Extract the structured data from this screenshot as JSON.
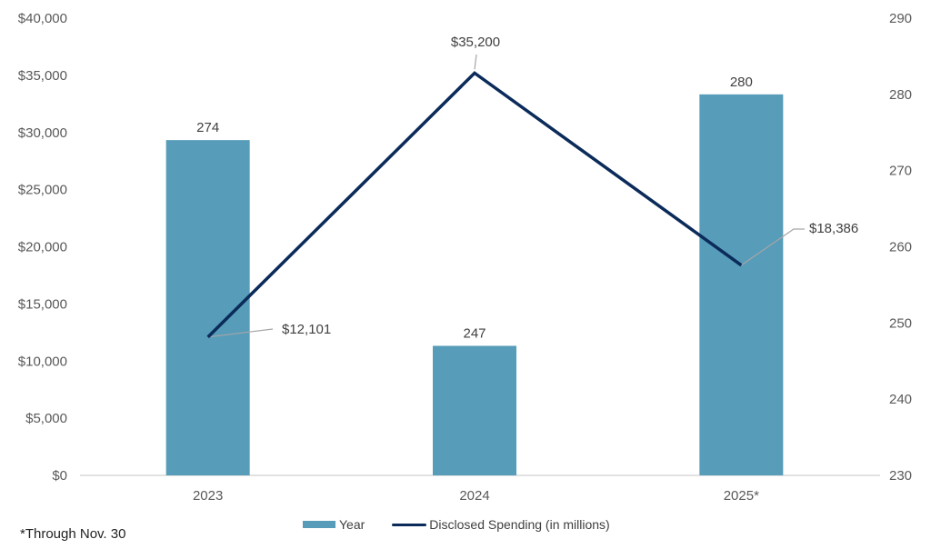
{
  "chart_data": {
    "type": "bar+line",
    "title": "",
    "categories": [
      "2023",
      "2024",
      "2025*"
    ],
    "series": [
      {
        "name": "Year",
        "type": "bar",
        "axis": "right",
        "values": [
          274,
          247,
          280
        ],
        "labels": [
          "274",
          "247",
          "280"
        ],
        "color": "#579cb9"
      },
      {
        "name": "Disclosed Spending (in millions)",
        "type": "line",
        "axis": "left",
        "values": [
          12101,
          35200,
          18386
        ],
        "labels": [
          "$12,101",
          "$35,200",
          "$18,386"
        ],
        "color": "#0b2b5a"
      }
    ],
    "left_axis": {
      "ylim": [
        0,
        40000
      ],
      "ticks": [
        "$0",
        "$5,000",
        "$10,000",
        "$15,000",
        "$20,000",
        "$25,000",
        "$30,000",
        "$35,000",
        "$40,000"
      ]
    },
    "right_axis": {
      "ylim": [
        230,
        290
      ],
      "ticks": [
        "230",
        "240",
        "250",
        "260",
        "270",
        "280",
        "290"
      ]
    },
    "grid": false,
    "legend_position": "bottom"
  },
  "legend": {
    "bar_label": "Year",
    "line_label": "Disclosed Spending (in millions)"
  },
  "footnote": "*Through Nov. 30",
  "colors": {
    "bar": "#579cb9",
    "line": "#0b2b5a",
    "leader": "#a6a6a6",
    "axis": "#d9d9d9"
  }
}
